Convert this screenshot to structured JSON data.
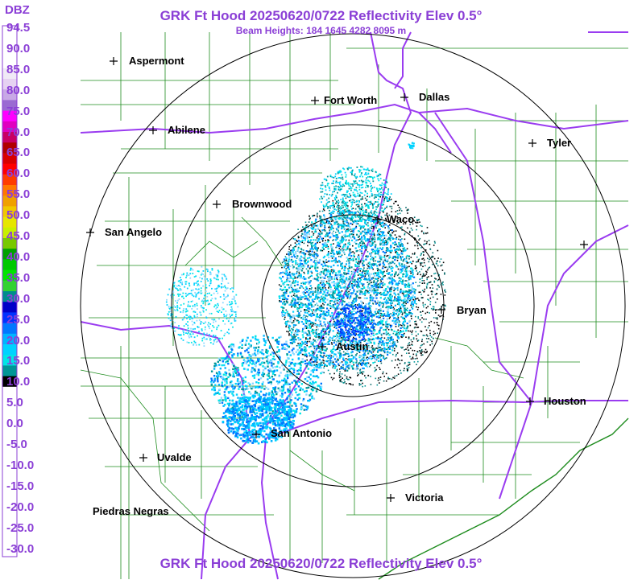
{
  "header": {
    "title": "GRK Ft Hood 20250620/0722 Reflectivity Elev 0.5°",
    "subtitle": "Beam Heights: 184 1645 4282 8095 m",
    "footer_title": "GRK Ft Hood 20250620/0722 Reflectivity Elev 0.5°"
  },
  "legend": {
    "unit": "DBZ",
    "labels": [
      "94.5",
      "90.0",
      "85.0",
      "80.0",
      "75.0",
      "70.0",
      "65.0",
      "60.0",
      "55.0",
      "50.0",
      "45.0",
      "40.0",
      "35.0",
      "30.0",
      "25.0",
      "20.0",
      "15.0",
      "10.0",
      "5.0",
      "0.0",
      "-5.0",
      "-10.0",
      "-15.0",
      "-20.0",
      "-25.0",
      "-30.0"
    ],
    "colors": [
      "#ffffff",
      "#ffffff",
      "#ffffff",
      "#ffffff",
      "#f0eaf6",
      "#e6d2f2",
      "#c8a8e6",
      "#9a6ad2",
      "#ff00ff",
      "#e000c0",
      "#c80064",
      "#b00000",
      "#d80000",
      "#ff0000",
      "#ff3c00",
      "#ff7800",
      "#f0a000",
      "#f0c800",
      "#e6e600",
      "#c8f000",
      "#78c800",
      "#00a000",
      "#00c800",
      "#00e600",
      "#32d232",
      "#008c8c",
      "#0000c8",
      "#0032ff",
      "#0078ff",
      "#00b4ff",
      "#00d2ff",
      "#00e6e6",
      "#009696",
      "#000000",
      "#ffffff",
      "#ffffff",
      "#ffffff",
      "#ffffff",
      "#ffffff",
      "#ffffff",
      "#ffffff",
      "#ffffff",
      "#ffffff",
      "#ffffff",
      "#ffffff",
      "#ffffff",
      "#ffffff",
      "#ffffff",
      "#ffffff",
      "#ffffff"
    ]
  },
  "map": {
    "colors": {
      "counties": "#1e8c1e",
      "highways": "#9a3cf0",
      "rings": "#000000",
      "coast": "#1e8c1e"
    },
    "cities": [
      {
        "name": "Aspermont"
      },
      {
        "name": "Fort Worth"
      },
      {
        "name": "Dallas"
      },
      {
        "name": "Abilene"
      },
      {
        "name": "Tyler"
      },
      {
        "name": "Brownwood"
      },
      {
        "name": "Waco"
      },
      {
        "name": "San Angelo"
      },
      {
        "name": "Bryan"
      },
      {
        "name": "Austin"
      },
      {
        "name": "Houston"
      },
      {
        "name": "San Antonio"
      },
      {
        "name": "Uvalde"
      },
      {
        "name": "Victoria"
      },
      {
        "name": "Piedras Negras"
      }
    ]
  }
}
